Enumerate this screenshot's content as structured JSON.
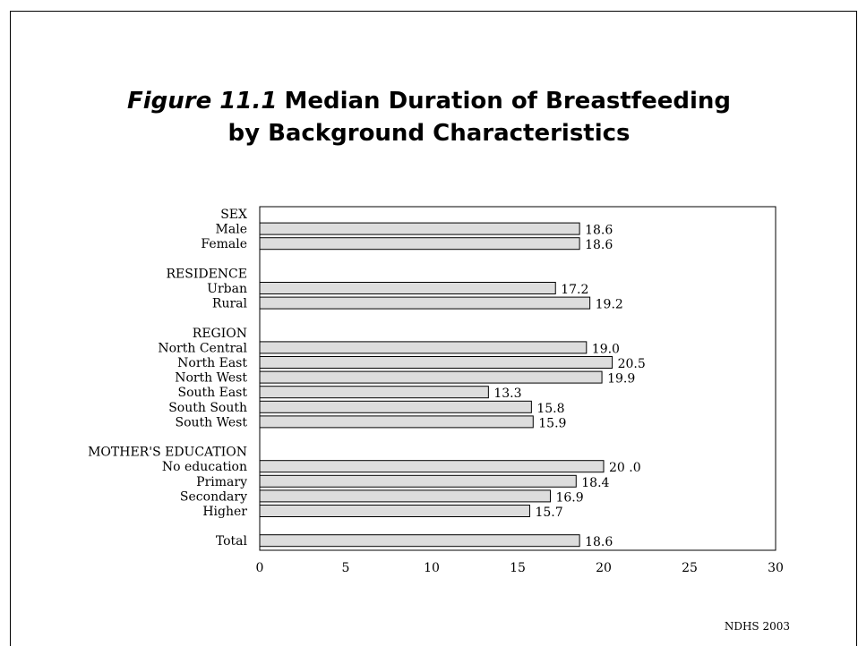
{
  "title": {
    "figure_label": "Figure 11.1",
    "line1": "Median Duration of Breastfeeding",
    "line2": "by Background Characteristics"
  },
  "source": "NDHS 2003",
  "chart_data": {
    "type": "bar",
    "orientation": "horizontal",
    "title": "Median Duration of Breastfeeding by Background Characteristics",
    "xlim": [
      0,
      30
    ],
    "xticks": [
      0,
      5,
      10,
      15,
      20,
      25,
      30
    ],
    "grid": false,
    "bar_color": "#dddddd",
    "rows": [
      {
        "kind": "header",
        "label": "SEX"
      },
      {
        "kind": "bar",
        "label": "Male",
        "value": 18.6,
        "value_label": "18.6"
      },
      {
        "kind": "bar",
        "label": "Female",
        "value": 18.6,
        "value_label": "18.6"
      },
      {
        "kind": "gap"
      },
      {
        "kind": "header",
        "label": "RESIDENCE"
      },
      {
        "kind": "bar",
        "label": "Urban",
        "value": 17.2,
        "value_label": "17.2"
      },
      {
        "kind": "bar",
        "label": "Rural",
        "value": 19.2,
        "value_label": "19.2"
      },
      {
        "kind": "gap"
      },
      {
        "kind": "header",
        "label": "REGION"
      },
      {
        "kind": "bar",
        "label": "North Central",
        "value": 19.0,
        "value_label": "19.0"
      },
      {
        "kind": "bar",
        "label": "North East",
        "value": 20.5,
        "value_label": "20.5"
      },
      {
        "kind": "bar",
        "label": "North West",
        "value": 19.9,
        "value_label": "19.9"
      },
      {
        "kind": "bar",
        "label": "South East",
        "value": 13.3,
        "value_label": "13.3"
      },
      {
        "kind": "bar",
        "label": "South South",
        "value": 15.8,
        "value_label": "15.8"
      },
      {
        "kind": "bar",
        "label": "South West",
        "value": 15.9,
        "value_label": "15.9"
      },
      {
        "kind": "gap"
      },
      {
        "kind": "header",
        "label": "MOTHER'S EDUCATION"
      },
      {
        "kind": "bar",
        "label": "No education",
        "value": 20.0,
        "value_label": "20 .0"
      },
      {
        "kind": "bar",
        "label": "Primary",
        "value": 18.4,
        "value_label": "18.4"
      },
      {
        "kind": "bar",
        "label": "Secondary",
        "value": 16.9,
        "value_label": "16.9"
      },
      {
        "kind": "bar",
        "label": "Higher",
        "value": 15.7,
        "value_label": "15.7"
      },
      {
        "kind": "gap"
      },
      {
        "kind": "bar",
        "label": "Total",
        "value": 18.6,
        "value_label": "18.6"
      }
    ]
  }
}
